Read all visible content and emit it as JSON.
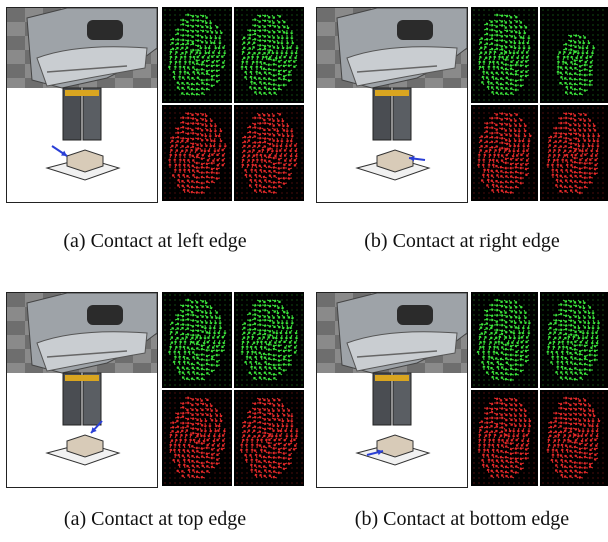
{
  "figures": [
    {
      "caption": "(a) Contact at left edge",
      "contact_side": "left",
      "tactile": {
        "top_left": "green",
        "top_right": "green",
        "bottom_left": "red",
        "bottom_right": "red"
      }
    },
    {
      "caption": "(b) Contact at right edge",
      "contact_side": "right",
      "tactile": {
        "top_left": "green",
        "top_right": "green",
        "bottom_left": "red",
        "bottom_right": "red"
      }
    },
    {
      "caption": "(a) Contact at top edge",
      "contact_side": "top",
      "tactile": {
        "top_left": "green",
        "top_right": "green",
        "bottom_left": "red",
        "bottom_right": "red"
      }
    },
    {
      "caption": "(b) Contact at bottom edge",
      "contact_side": "bottom",
      "tactile": {
        "top_left": "green",
        "top_right": "green",
        "bottom_left": "red",
        "bottom_right": "red"
      }
    }
  ],
  "colors": {
    "green_arrow": "#3ce63c",
    "red_arrow": "#e62a2a",
    "tile_background": "#000000",
    "contact_arrow": "#2a3fd6"
  }
}
